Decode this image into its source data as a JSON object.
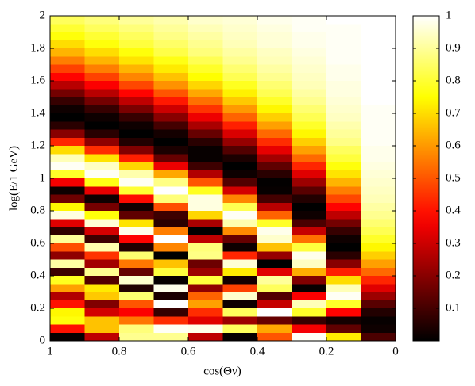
{
  "chart_data": {
    "type": "heatmap",
    "x_label": "cos(Θν)",
    "y_label": "log(E/1 GeV)",
    "xlim": [
      1,
      0
    ],
    "xticks": [
      1,
      0.8,
      0.6,
      0.4,
      0.2,
      0
    ],
    "ylim": [
      0,
      2
    ],
    "yticks": [
      0,
      0.2,
      0.4,
      0.6,
      0.8,
      1,
      1.2,
      1.4,
      1.6,
      1.8,
      2
    ],
    "colormap": "hot",
    "zlim": [
      0,
      1
    ],
    "zticks": [
      0.1,
      0.2,
      0.3,
      0.4,
      0.5,
      0.6,
      0.7,
      0.8,
      0.9,
      1
    ],
    "x": [
      0.95,
      0.85,
      0.75,
      0.65,
      0.55,
      0.45,
      0.35,
      0.25,
      0.15,
      0.05
    ],
    "y": [
      1.975,
      1.925,
      1.875,
      1.825,
      1.775,
      1.725,
      1.675,
      1.625,
      1.575,
      1.525,
      1.475,
      1.425,
      1.375,
      1.325,
      1.275,
      1.225,
      1.175,
      1.125,
      1.075,
      1.025,
      0.975,
      0.925,
      0.875,
      0.825,
      0.775,
      0.725,
      0.675,
      0.625,
      0.575,
      0.525,
      0.475,
      0.425,
      0.375,
      0.325,
      0.275,
      0.225,
      0.175,
      0.125,
      0.075,
      0.025
    ],
    "z": [
      [
        0.84,
        0.87,
        0.9,
        0.92,
        0.95,
        0.96,
        0.98,
        0.99,
        1,
        1
      ],
      [
        0.8,
        0.84,
        0.87,
        0.9,
        0.93,
        0.95,
        0.97,
        0.99,
        0.99,
        1
      ],
      [
        0.76,
        0.8,
        0.84,
        0.88,
        0.91,
        0.94,
        0.96,
        0.98,
        0.99,
        1
      ],
      [
        0.7,
        0.76,
        0.81,
        0.85,
        0.89,
        0.93,
        0.96,
        0.98,
        0.99,
        1
      ],
      [
        0.64,
        0.7,
        0.76,
        0.82,
        0.87,
        0.91,
        0.94,
        0.97,
        0.99,
        1
      ],
      [
        0.56,
        0.64,
        0.71,
        0.77,
        0.83,
        0.89,
        0.93,
        0.96,
        0.99,
        1
      ],
      [
        0.47,
        0.56,
        0.64,
        0.72,
        0.79,
        0.86,
        0.91,
        0.95,
        0.98,
        1
      ],
      [
        0.38,
        0.47,
        0.57,
        0.66,
        0.75,
        0.83,
        0.89,
        0.94,
        0.98,
        1
      ],
      [
        0.27,
        0.37,
        0.48,
        0.59,
        0.69,
        0.78,
        0.86,
        0.93,
        0.97,
        1
      ],
      [
        0.17,
        0.27,
        0.38,
        0.5,
        0.62,
        0.73,
        0.83,
        0.91,
        0.97,
        1
      ],
      [
        0.08,
        0.17,
        0.28,
        0.41,
        0.54,
        0.67,
        0.79,
        0.89,
        0.96,
        1
      ],
      [
        0.02,
        0.08,
        0.18,
        0.3,
        0.45,
        0.6,
        0.74,
        0.86,
        0.95,
        0.99
      ],
      [
        0,
        0.02,
        0.08,
        0.2,
        0.35,
        0.52,
        0.68,
        0.83,
        0.94,
        0.99
      ],
      [
        0.06,
        0,
        0.02,
        0.1,
        0.25,
        0.42,
        0.61,
        0.79,
        0.92,
        0.99
      ],
      [
        0.2,
        0.06,
        0,
        0.03,
        0.15,
        0.32,
        0.53,
        0.74,
        0.9,
        0.99
      ],
      [
        0.43,
        0.21,
        0.05,
        0,
        0.06,
        0.22,
        0.44,
        0.68,
        0.88,
        0.99
      ],
      [
        0.7,
        0.44,
        0.19,
        0.04,
        0.01,
        0.12,
        0.34,
        0.61,
        0.84,
        0.98
      ],
      [
        0.93,
        0.71,
        0.42,
        0.15,
        0.01,
        0.04,
        0.24,
        0.53,
        0.81,
        0.98
      ],
      [
        0.99,
        0.94,
        0.69,
        0.35,
        0.09,
        0,
        0.14,
        0.43,
        0.76,
        0.97
      ],
      [
        0.79,
        0.99,
        0.92,
        0.62,
        0.26,
        0.02,
        0.06,
        0.33,
        0.71,
        0.96
      ],
      [
        0.36,
        0.77,
        0.99,
        0.88,
        0.5,
        0.12,
        0.005,
        0.23,
        0.64,
        0.95
      ],
      [
        0.02,
        0.34,
        0.8,
        1,
        0.78,
        0.31,
        0.01,
        0.13,
        0.56,
        0.94
      ],
      [
        0.16,
        0.02,
        0.39,
        0.87,
        0.97,
        0.57,
        0.1,
        0.05,
        0.48,
        0.93
      ],
      [
        0.74,
        0.17,
        0.03,
        0.49,
        0.97,
        0.83,
        0.27,
        0,
        0.38,
        0.91
      ],
      [
        0.97,
        0.76,
        0.14,
        0.09,
        0.69,
        0.99,
        0.52,
        0.02,
        0.28,
        0.89
      ],
      [
        0.33,
        0.96,
        0.71,
        0.06,
        0.25,
        0.92,
        0.79,
        0.11,
        0.17,
        0.86
      ],
      [
        0.07,
        0.31,
        0.98,
        0.56,
        0,
        0.58,
        0.98,
        0.29,
        0.08,
        0.83
      ],
      [
        0.9,
        0.09,
        0.38,
        1,
        0.28,
        0.15,
        0.95,
        0.54,
        0.02,
        0.79
      ],
      [
        0.49,
        0.92,
        0.05,
        0.57,
        0.87,
        0.02,
        0.66,
        0.81,
        0,
        0.74
      ],
      [
        0.21,
        0.45,
        0.86,
        0,
        0.88,
        0.43,
        0.22,
        0.98,
        0.06,
        0.68
      ],
      [
        0.91,
        0.24,
        0.55,
        0.66,
        0.16,
        0.96,
        0,
        0.94,
        0.2,
        0.61
      ],
      [
        0.09,
        0.89,
        0.15,
        0.81,
        0.23,
        0.72,
        0.33,
        0.63,
        0.42,
        0.53
      ],
      [
        0.78,
        0.12,
        0.95,
        0.01,
        0.81,
        0.03,
        0.9,
        0.19,
        0.7,
        0.43
      ],
      [
        0.61,
        0.72,
        0.05,
        0.98,
        0.21,
        0.47,
        0.84,
        0.01,
        0.93,
        0.33
      ],
      [
        0.26,
        0.67,
        0.86,
        0.04,
        0.52,
        0.95,
        0.12,
        0.37,
        0.99,
        0.23
      ],
      [
        0.4,
        0.19,
        0.5,
        1,
        0.61,
        0.02,
        0.29,
        0.93,
        0.79,
        0.13
      ],
      [
        0.74,
        0.31,
        0.37,
        0.08,
        0.44,
        0.84,
        1,
        0.79,
        0.38,
        0.05
      ],
      [
        0.76,
        0.66,
        0.55,
        0.44,
        0.33,
        0.23,
        0.15,
        0.08,
        0.03,
        0.01
      ],
      [
        0.4,
        0.66,
        0.87,
        0.99,
        0.98,
        0.84,
        0.62,
        0.36,
        0.14,
        0.02
      ],
      [
        0.01,
        0.28,
        0.89,
        0.89,
        0.28,
        0.01,
        0.5,
        0.99,
        0.72,
        0.11
      ]
    ]
  }
}
